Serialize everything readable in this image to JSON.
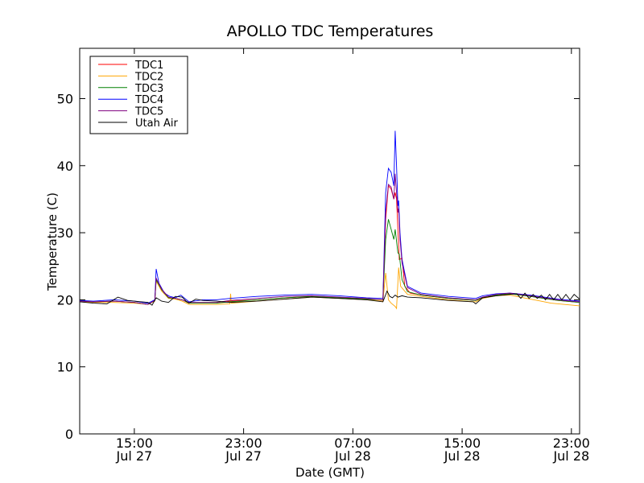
{
  "chart_data": {
    "type": "line",
    "title": "APOLLO TDC Temperatures",
    "xlabel": "Date (GMT)",
    "ylabel": "Temperature (C)",
    "x_unit": "hours",
    "xlim": [
      11.0,
      47.6
    ],
    "ylim": [
      0,
      57.5
    ],
    "yticks": [
      0,
      10,
      20,
      30,
      40,
      50
    ],
    "xticks": [
      {
        "hour": 15,
        "line1": "15:00",
        "line2": "Jul 27"
      },
      {
        "hour": 23,
        "line1": "23:00",
        "line2": "Jul 27"
      },
      {
        "hour": 31,
        "line1": "07:00",
        "line2": "Jul 28"
      },
      {
        "hour": 39,
        "line1": "15:00",
        "line2": "Jul 28"
      },
      {
        "hour": 47,
        "line1": "23:00",
        "line2": "Jul 28"
      }
    ],
    "legend_position": "top-left",
    "grid": false,
    "series": [
      {
        "name": "TDC1",
        "color": "#ff0000",
        "points": [
          [
            11.0,
            19.8
          ],
          [
            12.0,
            19.7
          ],
          [
            13.5,
            19.8
          ],
          [
            15.0,
            19.6
          ],
          [
            16.0,
            19.3
          ],
          [
            16.5,
            19.9
          ],
          [
            16.6,
            23.0
          ],
          [
            17.0,
            21.5
          ],
          [
            17.5,
            20.3
          ],
          [
            18.0,
            20.2
          ],
          [
            18.5,
            20.0
          ],
          [
            19.0,
            19.5
          ],
          [
            20.0,
            19.5
          ],
          [
            21.0,
            19.5
          ],
          [
            22.0,
            19.8
          ],
          [
            24.0,
            20.0
          ],
          [
            26.0,
            20.3
          ],
          [
            28.0,
            20.5
          ],
          [
            30.0,
            20.3
          ],
          [
            32.0,
            20.1
          ],
          [
            33.2,
            20.0
          ],
          [
            33.4,
            32.0
          ],
          [
            33.6,
            37.0
          ],
          [
            33.8,
            36.5
          ],
          [
            34.0,
            35.0
          ],
          [
            34.1,
            36.0
          ],
          [
            34.2,
            35.0
          ],
          [
            34.4,
            26.0
          ],
          [
            34.6,
            26.2
          ],
          [
            34.8,
            22.0
          ],
          [
            35.2,
            21.0
          ],
          [
            36.0,
            20.7
          ],
          [
            38.0,
            20.2
          ],
          [
            40.0,
            19.9
          ],
          [
            40.5,
            20.3
          ],
          [
            41.5,
            20.7
          ],
          [
            42.5,
            20.9
          ],
          [
            44.0,
            20.5
          ],
          [
            45.0,
            20.2
          ],
          [
            46.0,
            19.9
          ],
          [
            47.6,
            19.6
          ]
        ]
      },
      {
        "name": "TDC2",
        "color": "#ffa500",
        "points": [
          [
            11.0,
            19.7
          ],
          [
            12.0,
            19.6
          ],
          [
            13.5,
            19.6
          ],
          [
            15.0,
            19.5
          ],
          [
            16.0,
            19.3
          ],
          [
            16.5,
            19.8
          ],
          [
            16.6,
            22.8
          ],
          [
            17.0,
            21.3
          ],
          [
            17.5,
            20.2
          ],
          [
            18.0,
            20.1
          ],
          [
            18.5,
            19.8
          ],
          [
            19.0,
            19.3
          ],
          [
            20.0,
            19.3
          ],
          [
            21.0,
            19.3
          ],
          [
            22.0,
            19.4
          ],
          [
            22.05,
            20.9
          ],
          [
            22.1,
            19.5
          ],
          [
            24.0,
            19.8
          ],
          [
            26.0,
            20.1
          ],
          [
            28.0,
            20.4
          ],
          [
            30.0,
            20.2
          ],
          [
            32.0,
            20.0
          ],
          [
            33.2,
            19.8
          ],
          [
            33.4,
            24.0
          ],
          [
            33.5,
            22.0
          ],
          [
            33.6,
            20.0
          ],
          [
            33.8,
            19.5
          ],
          [
            34.1,
            19.0
          ],
          [
            34.2,
            18.7
          ],
          [
            34.35,
            24.8
          ],
          [
            34.5,
            22.0
          ],
          [
            35.0,
            20.8
          ],
          [
            36.0,
            20.5
          ],
          [
            38.0,
            20.0
          ],
          [
            40.0,
            19.7
          ],
          [
            40.5,
            20.2
          ],
          [
            41.5,
            20.6
          ],
          [
            42.5,
            20.7
          ],
          [
            43.5,
            20.3
          ],
          [
            44.5,
            19.9
          ],
          [
            45.5,
            19.5
          ],
          [
            46.5,
            19.3
          ],
          [
            47.6,
            19.1
          ]
        ]
      },
      {
        "name": "TDC3",
        "color": "#008000",
        "points": [
          [
            11.0,
            19.8
          ],
          [
            12.0,
            19.7
          ],
          [
            13.5,
            19.8
          ],
          [
            15.0,
            19.6
          ],
          [
            16.0,
            19.3
          ],
          [
            16.5,
            19.9
          ],
          [
            16.6,
            23.0
          ],
          [
            17.0,
            21.5
          ],
          [
            17.5,
            20.3
          ],
          [
            18.0,
            20.2
          ],
          [
            18.5,
            20.0
          ],
          [
            19.0,
            19.5
          ],
          [
            20.0,
            19.5
          ],
          [
            21.0,
            19.5
          ],
          [
            22.0,
            19.7
          ],
          [
            24.0,
            20.0
          ],
          [
            26.0,
            20.3
          ],
          [
            28.0,
            20.5
          ],
          [
            30.0,
            20.3
          ],
          [
            32.0,
            20.1
          ],
          [
            33.2,
            20.0
          ],
          [
            33.4,
            29.0
          ],
          [
            33.6,
            32.0
          ],
          [
            33.8,
            30.5
          ],
          [
            34.0,
            29.0
          ],
          [
            34.1,
            30.5
          ],
          [
            34.3,
            27.0
          ],
          [
            34.4,
            26.8
          ],
          [
            34.6,
            23.0
          ],
          [
            35.0,
            21.2
          ],
          [
            36.0,
            20.7
          ],
          [
            38.0,
            20.2
          ],
          [
            40.0,
            19.9
          ],
          [
            40.5,
            20.3
          ],
          [
            41.5,
            20.7
          ],
          [
            42.5,
            20.9
          ],
          [
            44.0,
            20.5
          ],
          [
            45.0,
            20.2
          ],
          [
            46.0,
            19.9
          ],
          [
            47.6,
            19.6
          ]
        ]
      },
      {
        "name": "TDC4",
        "color": "#0000ff",
        "points": [
          [
            11.0,
            19.9
          ],
          [
            12.0,
            19.8
          ],
          [
            13.5,
            20.0
          ],
          [
            15.0,
            19.8
          ],
          [
            16.0,
            19.5
          ],
          [
            16.5,
            20.0
          ],
          [
            16.6,
            24.6
          ],
          [
            16.8,
            22.5
          ],
          [
            17.2,
            21.0
          ],
          [
            17.6,
            20.5
          ],
          [
            18.0,
            20.3
          ],
          [
            18.4,
            20.7
          ],
          [
            18.7,
            20.2
          ],
          [
            19.0,
            19.7
          ],
          [
            20.0,
            20.0
          ],
          [
            21.0,
            20.0
          ],
          [
            22.0,
            20.2
          ],
          [
            24.0,
            20.5
          ],
          [
            26.0,
            20.7
          ],
          [
            28.0,
            20.8
          ],
          [
            30.0,
            20.6
          ],
          [
            32.0,
            20.3
          ],
          [
            33.2,
            20.2
          ],
          [
            33.4,
            36.0
          ],
          [
            33.6,
            39.6
          ],
          [
            33.8,
            39.0
          ],
          [
            34.0,
            37.0
          ],
          [
            34.1,
            45.2
          ],
          [
            34.2,
            40.0
          ],
          [
            34.3,
            34.0
          ],
          [
            34.35,
            34.8
          ],
          [
            34.45,
            30.0
          ],
          [
            34.6,
            26.0
          ],
          [
            35.0,
            22.0
          ],
          [
            36.0,
            21.0
          ],
          [
            38.0,
            20.5
          ],
          [
            40.0,
            20.2
          ],
          [
            40.5,
            20.6
          ],
          [
            41.5,
            20.9
          ],
          [
            42.5,
            21.0
          ],
          [
            44.0,
            20.7
          ],
          [
            45.0,
            20.4
          ],
          [
            46.0,
            20.1
          ],
          [
            47.6,
            19.8
          ]
        ]
      },
      {
        "name": "TDC5",
        "color": "#800080",
        "points": [
          [
            11.0,
            19.8
          ],
          [
            12.0,
            19.7
          ],
          [
            13.5,
            19.8
          ],
          [
            15.0,
            19.6
          ],
          [
            16.0,
            19.3
          ],
          [
            16.5,
            19.9
          ],
          [
            16.6,
            23.2
          ],
          [
            17.0,
            21.6
          ],
          [
            17.5,
            20.4
          ],
          [
            18.0,
            20.2
          ],
          [
            18.5,
            20.0
          ],
          [
            19.0,
            19.6
          ],
          [
            20.0,
            19.6
          ],
          [
            21.0,
            19.6
          ],
          [
            22.0,
            19.9
          ],
          [
            24.0,
            20.2
          ],
          [
            26.0,
            20.5
          ],
          [
            28.0,
            20.6
          ],
          [
            30.0,
            20.4
          ],
          [
            32.0,
            20.2
          ],
          [
            33.2,
            20.0
          ],
          [
            33.4,
            33.0
          ],
          [
            33.6,
            37.2
          ],
          [
            33.8,
            36.8
          ],
          [
            34.0,
            35.0
          ],
          [
            34.1,
            38.8
          ],
          [
            34.2,
            36.0
          ],
          [
            34.3,
            33.0
          ],
          [
            34.35,
            33.6
          ],
          [
            34.45,
            29.0
          ],
          [
            34.6,
            25.5
          ],
          [
            35.0,
            21.8
          ],
          [
            36.0,
            20.8
          ],
          [
            38.0,
            20.3
          ],
          [
            40.0,
            20.0
          ],
          [
            40.5,
            20.4
          ],
          [
            41.5,
            20.8
          ],
          [
            42.5,
            21.0
          ],
          [
            44.0,
            20.6
          ],
          [
            45.0,
            20.3
          ],
          [
            46.0,
            20.0
          ],
          [
            47.6,
            19.7
          ]
        ]
      },
      {
        "name": "Utah Air",
        "color": "#000000",
        "points": [
          [
            11.0,
            19.7
          ],
          [
            12.0,
            19.5
          ],
          [
            13.0,
            19.4
          ],
          [
            13.8,
            20.4
          ],
          [
            14.5,
            19.9
          ],
          [
            15.0,
            19.8
          ],
          [
            16.0,
            19.6
          ],
          [
            16.3,
            19.2
          ],
          [
            16.6,
            20.3
          ],
          [
            17.0,
            19.8
          ],
          [
            17.5,
            19.6
          ],
          [
            18.0,
            20.5
          ],
          [
            18.5,
            20.4
          ],
          [
            18.8,
            19.8
          ],
          [
            19.0,
            19.5
          ],
          [
            19.5,
            20.1
          ],
          [
            20.0,
            19.9
          ],
          [
            21.0,
            19.8
          ],
          [
            22.0,
            19.6
          ],
          [
            24.0,
            19.8
          ],
          [
            26.0,
            20.1
          ],
          [
            28.0,
            20.4
          ],
          [
            30.0,
            20.2
          ],
          [
            32.0,
            20.0
          ],
          [
            33.2,
            19.7
          ],
          [
            33.5,
            21.3
          ],
          [
            33.7,
            20.5
          ],
          [
            33.9,
            20.3
          ],
          [
            34.1,
            20.7
          ],
          [
            34.3,
            20.4
          ],
          [
            34.6,
            20.6
          ],
          [
            35.0,
            20.4
          ],
          [
            36.0,
            20.3
          ],
          [
            38.0,
            19.9
          ],
          [
            39.8,
            19.7
          ],
          [
            40.0,
            19.4
          ],
          [
            40.5,
            20.3
          ],
          [
            41.5,
            20.6
          ],
          [
            42.5,
            20.8
          ],
          [
            43.0,
            20.9
          ],
          [
            43.3,
            20.2
          ],
          [
            43.6,
            21.0
          ],
          [
            43.9,
            20.2
          ],
          [
            44.2,
            20.8
          ],
          [
            44.5,
            20.2
          ],
          [
            44.8,
            20.7
          ],
          [
            45.1,
            20.0
          ],
          [
            45.4,
            20.8
          ],
          [
            45.7,
            20.0
          ],
          [
            46.0,
            20.8
          ],
          [
            46.3,
            20.0
          ],
          [
            46.6,
            20.8
          ],
          [
            46.9,
            20.0
          ],
          [
            47.2,
            20.8
          ],
          [
            47.6,
            20.1
          ]
        ]
      }
    ]
  }
}
